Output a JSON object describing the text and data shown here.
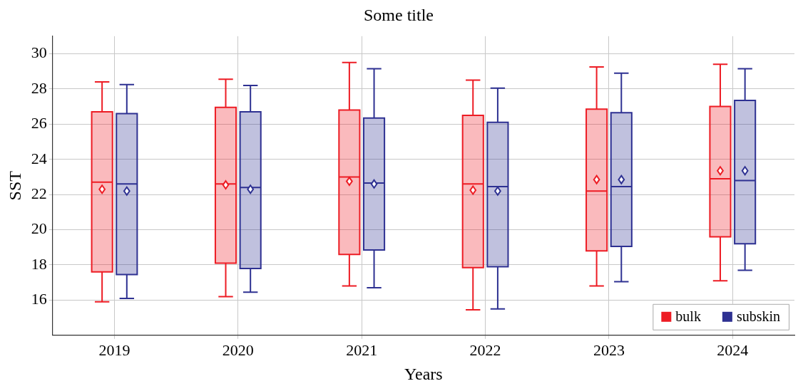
{
  "chart_data": {
    "type": "box",
    "title": "Some title",
    "xlabel": "Years",
    "ylabel": "SST",
    "categories": [
      "2019",
      "2020",
      "2021",
      "2022",
      "2023",
      "2024"
    ],
    "ylim": [
      14,
      31
    ],
    "yticks": [
      16,
      18,
      20,
      22,
      24,
      26,
      28,
      30
    ],
    "grid": true,
    "legend": "bottom right",
    "marker": "diamond",
    "series": [
      {
        "name": "bulk",
        "color": "#ed1c24",
        "boxes": [
          {
            "low": 15.9,
            "q1": 17.6,
            "median": 22.7,
            "q3": 26.7,
            "high": 28.4,
            "mean": 22.3
          },
          {
            "low": 16.2,
            "q1": 18.1,
            "median": 22.6,
            "q3": 26.95,
            "high": 28.55,
            "mean": 22.55
          },
          {
            "low": 16.8,
            "q1": 18.6,
            "median": 23.0,
            "q3": 26.8,
            "high": 29.5,
            "mean": 22.75
          },
          {
            "low": 15.45,
            "q1": 17.85,
            "median": 22.6,
            "q3": 26.5,
            "high": 28.5,
            "mean": 22.25
          },
          {
            "low": 16.8,
            "q1": 18.8,
            "median": 22.2,
            "q3": 26.85,
            "high": 29.25,
            "mean": 22.85
          },
          {
            "low": 17.1,
            "q1": 19.6,
            "median": 22.9,
            "q3": 27.0,
            "high": 29.4,
            "mean": 23.35
          }
        ]
      },
      {
        "name": "subskin",
        "color": "#2e3192",
        "boxes": [
          {
            "low": 16.1,
            "q1": 17.45,
            "median": 22.6,
            "q3": 26.6,
            "high": 28.25,
            "mean": 22.2
          },
          {
            "low": 16.45,
            "q1": 17.8,
            "median": 22.4,
            "q3": 26.7,
            "high": 28.2,
            "mean": 22.3
          },
          {
            "low": 16.7,
            "q1": 18.85,
            "median": 22.65,
            "q3": 26.35,
            "high": 29.15,
            "mean": 22.6
          },
          {
            "low": 15.5,
            "q1": 17.9,
            "median": 22.45,
            "q3": 26.1,
            "high": 28.05,
            "mean": 22.2
          },
          {
            "low": 17.05,
            "q1": 19.05,
            "median": 22.45,
            "q3": 26.65,
            "high": 28.9,
            "mean": 22.85
          },
          {
            "low": 17.7,
            "q1": 19.2,
            "median": 22.8,
            "q3": 27.35,
            "high": 29.15,
            "mean": 23.35
          }
        ]
      }
    ]
  }
}
